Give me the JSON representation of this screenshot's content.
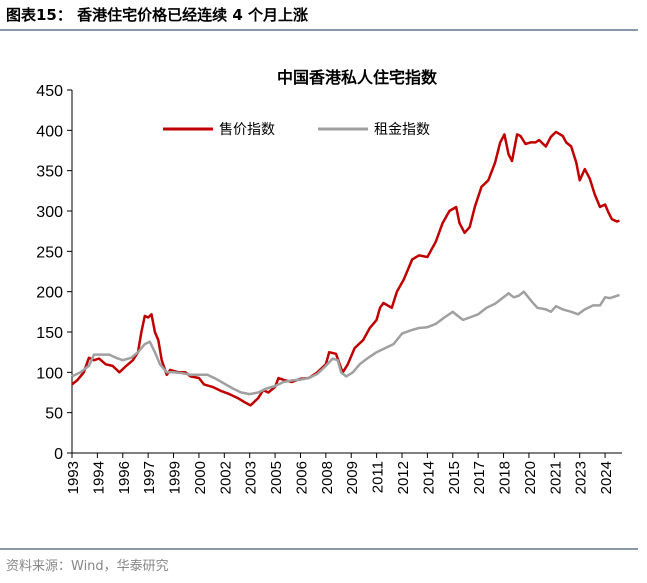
{
  "header": {
    "title": "图表15：  香港住宅价格已经连续 4 个月上涨"
  },
  "footer": {
    "source": "资料来源：Wind，华泰研究"
  },
  "chart_data": {
    "type": "line",
    "title": "中国香港私人住宅指数",
    "xlabel": "",
    "ylabel": "",
    "ylim": [
      0,
      450
    ],
    "yticks": [
      0,
      50,
      100,
      150,
      200,
      250,
      300,
      350,
      400,
      450
    ],
    "xlim": [
      1993,
      2025.5
    ],
    "xticks": [
      {
        "x": 1993.0,
        "label": "1993"
      },
      {
        "x": 1994.5,
        "label": "1994"
      },
      {
        "x": 1996.0,
        "label": "1996"
      },
      {
        "x": 1997.5,
        "label": "1997"
      },
      {
        "x": 1999.0,
        "label": "1999"
      },
      {
        "x": 2000.5,
        "label": "2000"
      },
      {
        "x": 2002.0,
        "label": "2002"
      },
      {
        "x": 2003.5,
        "label": "2003"
      },
      {
        "x": 2005.0,
        "label": "2005"
      },
      {
        "x": 2006.5,
        "label": "2006"
      },
      {
        "x": 2008.0,
        "label": "2008"
      },
      {
        "x": 2009.5,
        "label": "2009"
      },
      {
        "x": 2011.0,
        "label": "2011"
      },
      {
        "x": 2012.5,
        "label": "2012"
      },
      {
        "x": 2014.0,
        "label": "2014"
      },
      {
        "x": 2015.5,
        "label": "2015"
      },
      {
        "x": 2017.0,
        "label": "2017"
      },
      {
        "x": 2018.5,
        "label": "2018"
      },
      {
        "x": 2020.0,
        "label": "2020"
      },
      {
        "x": 2021.5,
        "label": "2021"
      },
      {
        "x": 2023.0,
        "label": "2023"
      },
      {
        "x": 2024.5,
        "label": "2024"
      }
    ],
    "grid": false,
    "legend": "top",
    "series": [
      {
        "name": "售价指数",
        "color": "#c00000",
        "points": [
          [
            1993.0,
            85
          ],
          [
            1993.3,
            90
          ],
          [
            1993.7,
            100
          ],
          [
            1994.0,
            118
          ],
          [
            1994.3,
            115
          ],
          [
            1994.6,
            117
          ],
          [
            1995.0,
            110
          ],
          [
            1995.4,
            108
          ],
          [
            1995.8,
            100
          ],
          [
            1996.2,
            108
          ],
          [
            1996.6,
            115
          ],
          [
            1996.9,
            125
          ],
          [
            1997.1,
            150
          ],
          [
            1997.3,
            170
          ],
          [
            1997.5,
            168
          ],
          [
            1997.7,
            172
          ],
          [
            1997.9,
            150
          ],
          [
            1998.1,
            140
          ],
          [
            1998.3,
            115
          ],
          [
            1998.6,
            97
          ],
          [
            1998.8,
            103
          ],
          [
            1999.3,
            100
          ],
          [
            1999.7,
            100
          ],
          [
            2000.0,
            95
          ],
          [
            2000.5,
            93
          ],
          [
            2000.8,
            85
          ],
          [
            2001.3,
            82
          ],
          [
            2001.8,
            77
          ],
          [
            2002.3,
            73
          ],
          [
            2002.8,
            68
          ],
          [
            2003.2,
            63
          ],
          [
            2003.55,
            59
          ],
          [
            2004.0,
            68
          ],
          [
            2004.3,
            78
          ],
          [
            2004.6,
            75
          ],
          [
            2005.0,
            82
          ],
          [
            2005.2,
            93
          ],
          [
            2005.6,
            90
          ],
          [
            2006.0,
            88
          ],
          [
            2006.5,
            92
          ],
          [
            2007.0,
            93
          ],
          [
            2007.5,
            100
          ],
          [
            2008.0,
            110
          ],
          [
            2008.2,
            125
          ],
          [
            2008.6,
            123
          ],
          [
            2008.9,
            105
          ],
          [
            2009.0,
            100
          ],
          [
            2009.3,
            110
          ],
          [
            2009.7,
            130
          ],
          [
            2010.2,
            140
          ],
          [
            2010.6,
            155
          ],
          [
            2011.0,
            165
          ],
          [
            2011.2,
            180
          ],
          [
            2011.4,
            186
          ],
          [
            2011.9,
            180
          ],
          [
            2012.2,
            200
          ],
          [
            2012.6,
            215
          ],
          [
            2012.9,
            230
          ],
          [
            2013.1,
            240
          ],
          [
            2013.5,
            245
          ],
          [
            2014.0,
            243
          ],
          [
            2014.5,
            262
          ],
          [
            2014.9,
            285
          ],
          [
            2015.3,
            300
          ],
          [
            2015.7,
            305
          ],
          [
            2015.9,
            285
          ],
          [
            2016.2,
            273
          ],
          [
            2016.5,
            280
          ],
          [
            2016.8,
            305
          ],
          [
            2017.2,
            330
          ],
          [
            2017.6,
            338
          ],
          [
            2018.0,
            360
          ],
          [
            2018.3,
            385
          ],
          [
            2018.55,
            395
          ],
          [
            2018.8,
            370
          ],
          [
            2019.0,
            362
          ],
          [
            2019.3,
            395
          ],
          [
            2019.5,
            393
          ],
          [
            2019.8,
            383
          ],
          [
            2020.1,
            385
          ],
          [
            2020.4,
            385
          ],
          [
            2020.6,
            388
          ],
          [
            2021.0,
            380
          ],
          [
            2021.3,
            392
          ],
          [
            2021.6,
            398
          ],
          [
            2022.0,
            393
          ],
          [
            2022.2,
            385
          ],
          [
            2022.5,
            380
          ],
          [
            2022.8,
            360
          ],
          [
            2023.0,
            338
          ],
          [
            2023.3,
            352
          ],
          [
            2023.6,
            340
          ],
          [
            2023.9,
            320
          ],
          [
            2024.2,
            305
          ],
          [
            2024.5,
            308
          ],
          [
            2024.7,
            298
          ],
          [
            2024.9,
            290
          ],
          [
            2025.2,
            287
          ],
          [
            2025.35,
            288
          ]
        ]
      },
      {
        "name": "租金指数",
        "color": "#a0a0a0",
        "points": [
          [
            1993.0,
            95
          ],
          [
            1993.5,
            100
          ],
          [
            1994.0,
            108
          ],
          [
            1994.3,
            122
          ],
          [
            1994.7,
            122
          ],
          [
            1995.2,
            122
          ],
          [
            1995.6,
            118
          ],
          [
            1996.0,
            115
          ],
          [
            1996.5,
            118
          ],
          [
            1996.9,
            125
          ],
          [
            1997.3,
            135
          ],
          [
            1997.6,
            138
          ],
          [
            1997.9,
            125
          ],
          [
            1998.2,
            110
          ],
          [
            1998.6,
            100
          ],
          [
            1999.0,
            100
          ],
          [
            1999.5,
            99
          ],
          [
            2000.0,
            97
          ],
          [
            2000.5,
            97
          ],
          [
            2001.0,
            97
          ],
          [
            2001.5,
            92
          ],
          [
            2002.0,
            86
          ],
          [
            2002.5,
            80
          ],
          [
            2003.0,
            75
          ],
          [
            2003.5,
            73
          ],
          [
            2004.0,
            75
          ],
          [
            2004.5,
            80
          ],
          [
            2005.0,
            83
          ],
          [
            2005.5,
            88
          ],
          [
            2006.0,
            90
          ],
          [
            2006.5,
            91
          ],
          [
            2007.0,
            93
          ],
          [
            2007.5,
            98
          ],
          [
            2008.0,
            108
          ],
          [
            2008.4,
            117
          ],
          [
            2008.7,
            115
          ],
          [
            2008.9,
            100
          ],
          [
            2009.2,
            95
          ],
          [
            2009.6,
            100
          ],
          [
            2010.0,
            110
          ],
          [
            2010.5,
            118
          ],
          [
            2011.0,
            125
          ],
          [
            2011.5,
            130
          ],
          [
            2012.0,
            135
          ],
          [
            2012.5,
            148
          ],
          [
            2013.0,
            152
          ],
          [
            2013.5,
            155
          ],
          [
            2014.0,
            156
          ],
          [
            2014.5,
            160
          ],
          [
            2015.0,
            168
          ],
          [
            2015.5,
            175
          ],
          [
            2015.8,
            170
          ],
          [
            2016.1,
            165
          ],
          [
            2016.5,
            168
          ],
          [
            2017.0,
            172
          ],
          [
            2017.5,
            180
          ],
          [
            2018.0,
            185
          ],
          [
            2018.5,
            193
          ],
          [
            2018.8,
            198
          ],
          [
            2019.1,
            193
          ],
          [
            2019.4,
            195
          ],
          [
            2019.7,
            200
          ],
          [
            2020.2,
            187
          ],
          [
            2020.5,
            180
          ],
          [
            2021.0,
            178
          ],
          [
            2021.3,
            175
          ],
          [
            2021.6,
            182
          ],
          [
            2022.0,
            178
          ],
          [
            2022.5,
            175
          ],
          [
            2022.9,
            172
          ],
          [
            2023.3,
            178
          ],
          [
            2023.8,
            183
          ],
          [
            2024.2,
            183
          ],
          [
            2024.5,
            193
          ],
          [
            2024.8,
            192
          ],
          [
            2025.35,
            196
          ]
        ]
      }
    ]
  }
}
